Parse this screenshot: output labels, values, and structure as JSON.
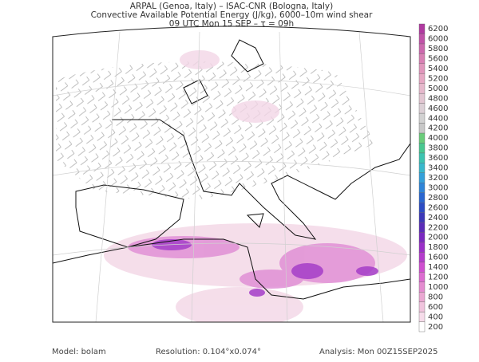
{
  "header": {
    "lines": [
      "ARPAL (Genoa, Italy)  –  ISAC-CNR (Bologna, Italy)",
      "Convective Available Potential Energy (J/kg), 6000–10m wind shear",
      "09 UTC Mon 15 SEP  –  τ = 09h"
    ]
  },
  "colorbar": {
    "ticks": [
      200,
      400,
      600,
      800,
      1000,
      1200,
      1400,
      1600,
      1800,
      2000,
      2200,
      2400,
      2600,
      2800,
      3000,
      3200,
      3400,
      3600,
      3800,
      4000,
      4200,
      4400,
      4600,
      4800,
      5000,
      5200,
      5400,
      5600,
      5800,
      6000,
      6200
    ],
    "colors": [
      "#ffffff",
      "#f6dcea",
      "#f0c4dd",
      "#eaa8d2",
      "#e48cd0",
      "#dc6cd0",
      "#cf4fd0",
      "#b43ccc",
      "#9a2fc8",
      "#7a28c0",
      "#5a2cb8",
      "#3c38b8",
      "#2c4cc4",
      "#2a66d0",
      "#2e84d8",
      "#34a0da",
      "#38b8cc",
      "#3cc4b0",
      "#48c890",
      "#6acc7a",
      "#c8c8c8",
      "#d2d2d2",
      "#dcd0d6",
      "#e2c6d2",
      "#e6b8cc",
      "#e6a8c4",
      "#e096bc",
      "#d880b4",
      "#cc68ae",
      "#c052a8",
      "#b03aa0"
    ]
  },
  "footer": {
    "model": "Model: bolam",
    "resolution": "Resolution: 0.104°x0.074°",
    "analysis": "Analysis: Mon 00Z15SEP2025"
  }
}
